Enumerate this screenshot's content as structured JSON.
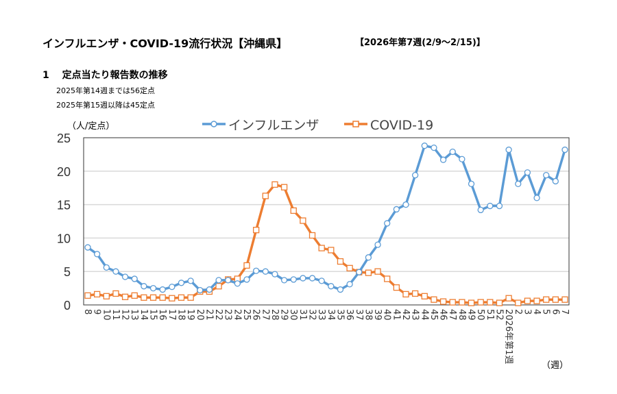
{
  "header": {
    "title": "インフルエンザ・COVID-19流行状況【沖縄県】",
    "period": "【2026年第7週(2/9～2/15)】",
    "section": "1　 定点当たり報告数の推移",
    "notes": [
      "2025年第14週までは56定点",
      "2025年第15週以降は45定点"
    ]
  },
  "chart_data": {
    "type": "line",
    "title": "",
    "ylabel": "（人/定点）",
    "xlabel": "（週）",
    "ylim": [
      0,
      25
    ],
    "yticks": [
      0,
      5,
      10,
      15,
      20,
      25
    ],
    "grid": true,
    "legend": "top-center",
    "categories": [
      "8",
      "9",
      "10",
      "11",
      "12",
      "13",
      "14",
      "15",
      "16",
      "17",
      "18",
      "19",
      "20",
      "21",
      "22",
      "23",
      "24",
      "25",
      "26",
      "27",
      "28",
      "29",
      "30",
      "31",
      "32",
      "33",
      "34",
      "35",
      "36",
      "37",
      "38",
      "39",
      "40",
      "41",
      "42",
      "43",
      "44",
      "45",
      "46",
      "47",
      "48",
      "49",
      "50",
      "51",
      "52",
      "2026年第1週",
      "2",
      "3",
      "4",
      "5",
      "6",
      "7"
    ],
    "series": [
      {
        "name": "インフルエンザ",
        "color": "#5B9BD5",
        "marker": "circle",
        "values": [
          8.6,
          7.6,
          5.6,
          5.0,
          4.2,
          3.9,
          2.8,
          2.5,
          2.3,
          2.7,
          3.3,
          3.6,
          2.2,
          2.3,
          3.7,
          3.7,
          3.2,
          3.8,
          5.1,
          5.0,
          4.6,
          3.7,
          3.8,
          4.0,
          4.0,
          3.6,
          2.8,
          2.3,
          3.1,
          4.9,
          7.1,
          9.0,
          12.2,
          14.3,
          15.0,
          19.4,
          23.8,
          23.5,
          21.7,
          22.9,
          21.8,
          18.1,
          14.2,
          14.8,
          14.8,
          23.2,
          18.1,
          19.8,
          16.0,
          19.4,
          18.5,
          23.2
        ]
      },
      {
        "name": "COVID-19",
        "color": "#ED7D31",
        "marker": "square",
        "values": [
          1.4,
          1.6,
          1.3,
          1.7,
          1.2,
          1.4,
          1.1,
          1.1,
          1.1,
          1.0,
          1.1,
          1.1,
          2.0,
          2.0,
          2.8,
          3.8,
          3.9,
          5.9,
          11.2,
          16.3,
          18.0,
          17.6,
          14.1,
          12.6,
          10.4,
          8.5,
          8.2,
          6.5,
          5.5,
          4.9,
          4.8,
          5.0,
          3.9,
          2.6,
          1.6,
          1.7,
          1.3,
          0.8,
          0.5,
          0.4,
          0.4,
          0.3,
          0.4,
          0.4,
          0.3,
          1.0,
          0.3,
          0.6,
          0.6,
          0.8,
          0.8,
          0.8
        ]
      }
    ]
  }
}
